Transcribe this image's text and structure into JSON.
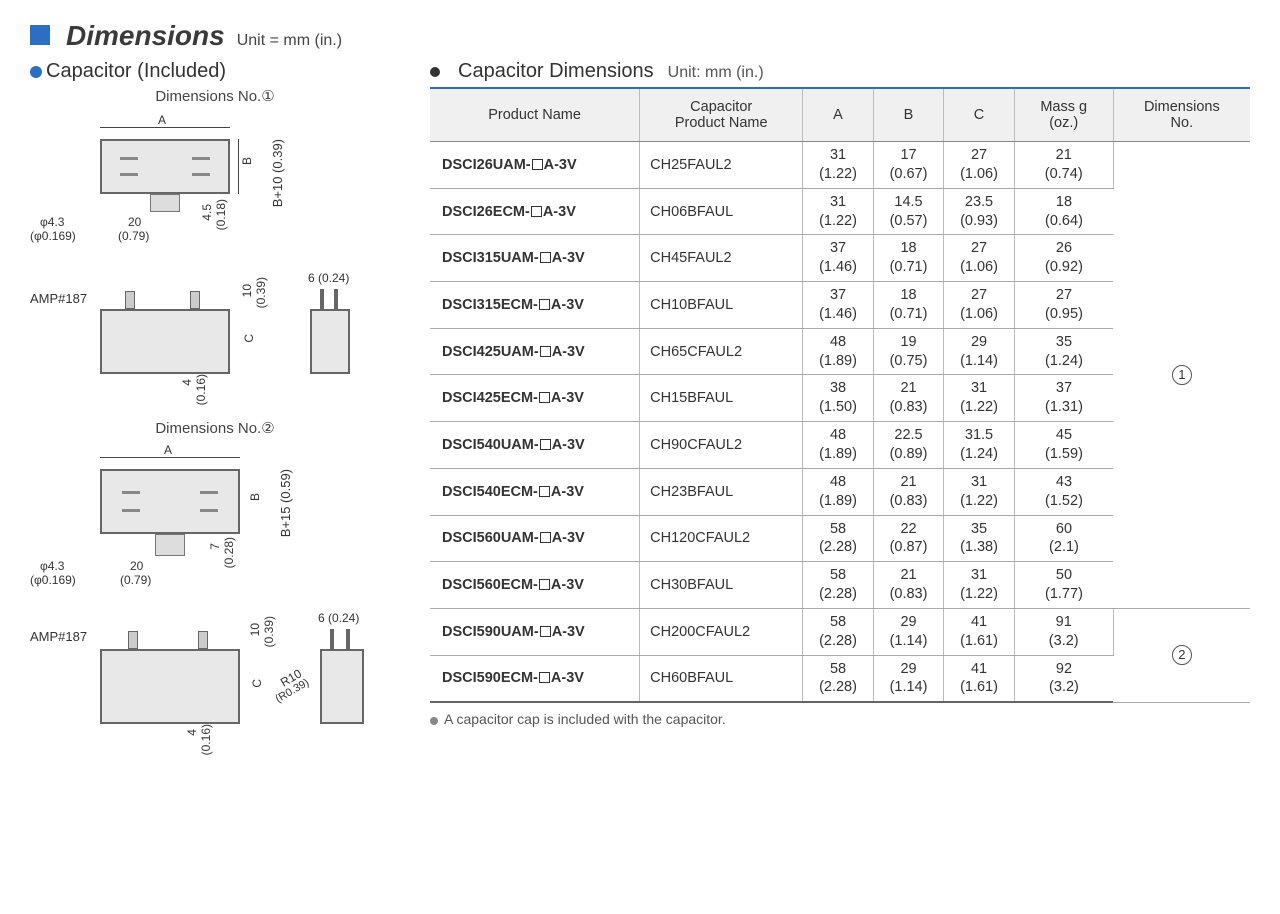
{
  "header": {
    "title": "Dimensions",
    "unit": "Unit = mm (in.)"
  },
  "left": {
    "subtitle": "Capacitor (Included)",
    "dim1_label": "Dimensions No.①",
    "dim2_label": "Dimensions No.②",
    "amp_label": "AMP#187",
    "d1": {
      "A": "A",
      "B": "B",
      "phi": "φ4.3",
      "phi_in": "(φ0.169)",
      "w20": "20",
      "w20_in": "(0.79)",
      "h45": "4.5",
      "h45_in": "(0.18)",
      "bplus": "B+10 (0.39)",
      "ten": "10",
      "ten_in": "(0.39)",
      "six": "6 (0.24)",
      "C": "C",
      "four": "4",
      "four_in": "(0.16)"
    },
    "d2": {
      "A": "A",
      "B": "B",
      "phi": "φ4.3",
      "phi_in": "(φ0.169)",
      "w20": "20",
      "w20_in": "(0.79)",
      "h7": "7",
      "h7_in": "(0.28)",
      "bplus": "B+15 (0.59)",
      "ten": "10",
      "ten_in": "(0.39)",
      "six": "6 (0.24)",
      "C": "C",
      "four": "4",
      "four_in": "(0.16)",
      "r10": "R10",
      "r10_in": "(R0.39)"
    }
  },
  "right": {
    "title": "Capacitor Dimensions",
    "unit": "Unit: mm (in.)",
    "columns": [
      "Product Name",
      "Capacitor Product Name",
      "A",
      "B",
      "C",
      "Mass g (oz.)",
      "Dimensions No."
    ],
    "rows": [
      {
        "pn": "DSCI26UAM-",
        "pn2": "A-3V",
        "cp": "CH25FAUL2",
        "a": "31",
        "ai": "(1.22)",
        "b": "17",
        "bi": "(0.67)",
        "c": "27",
        "ci": "(1.06)",
        "m": "21",
        "mi": "(0.74)",
        "dn": "1"
      },
      {
        "pn": "DSCI26ECM-",
        "pn2": "A-3V",
        "cp": "CH06BFAUL",
        "a": "31",
        "ai": "(1.22)",
        "b": "14.5",
        "bi": "(0.57)",
        "c": "23.5",
        "ci": "(0.93)",
        "m": "18",
        "mi": "(0.64)",
        "dn": "1"
      },
      {
        "pn": "DSCI315UAM-",
        "pn2": "A-3V",
        "cp": "CH45FAUL2",
        "a": "37",
        "ai": "(1.46)",
        "b": "18",
        "bi": "(0.71)",
        "c": "27",
        "ci": "(1.06)",
        "m": "26",
        "mi": "(0.92)",
        "dn": "1"
      },
      {
        "pn": "DSCI315ECM-",
        "pn2": "A-3V",
        "cp": "CH10BFAUL",
        "a": "37",
        "ai": "(1.46)",
        "b": "18",
        "bi": "(0.71)",
        "c": "27",
        "ci": "(1.06)",
        "m": "27",
        "mi": "(0.95)",
        "dn": "1"
      },
      {
        "pn": "DSCI425UAM-",
        "pn2": "A-3V",
        "cp": "CH65CFAUL2",
        "a": "48",
        "ai": "(1.89)",
        "b": "19",
        "bi": "(0.75)",
        "c": "29",
        "ci": "(1.14)",
        "m": "35",
        "mi": "(1.24)",
        "dn": "1"
      },
      {
        "pn": "DSCI425ECM-",
        "pn2": "A-3V",
        "cp": "CH15BFAUL",
        "a": "38",
        "ai": "(1.50)",
        "b": "21",
        "bi": "(0.83)",
        "c": "31",
        "ci": "(1.22)",
        "m": "37",
        "mi": "(1.31)",
        "dn": "1"
      },
      {
        "pn": "DSCI540UAM-",
        "pn2": "A-3V",
        "cp": "CH90CFAUL2",
        "a": "48",
        "ai": "(1.89)",
        "b": "22.5",
        "bi": "(0.89)",
        "c": "31.5",
        "ci": "(1.24)",
        "m": "45",
        "mi": "(1.59)",
        "dn": "1"
      },
      {
        "pn": "DSCI540ECM-",
        "pn2": "A-3V",
        "cp": "CH23BFAUL",
        "a": "48",
        "ai": "(1.89)",
        "b": "21",
        "bi": "(0.83)",
        "c": "31",
        "ci": "(1.22)",
        "m": "43",
        "mi": "(1.52)",
        "dn": "1"
      },
      {
        "pn": "DSCI560UAM-",
        "pn2": "A-3V",
        "cp": "CH120CFAUL2",
        "a": "58",
        "ai": "(2.28)",
        "b": "22",
        "bi": "(0.87)",
        "c": "35",
        "ci": "(1.38)",
        "m": "60",
        "mi": "(2.1)",
        "dn": "1"
      },
      {
        "pn": "DSCI560ECM-",
        "pn2": "A-3V",
        "cp": "CH30BFAUL",
        "a": "58",
        "ai": "(2.28)",
        "b": "21",
        "bi": "(0.83)",
        "c": "31",
        "ci": "(1.22)",
        "m": "50",
        "mi": "(1.77)",
        "dn": "1"
      },
      {
        "pn": "DSCI590UAM-",
        "pn2": "A-3V",
        "cp": "CH200CFAUL2",
        "a": "58",
        "ai": "(2.28)",
        "b": "29",
        "bi": "(1.14)",
        "c": "41",
        "ci": "(1.61)",
        "m": "91",
        "mi": "(3.2)",
        "dn": "2"
      },
      {
        "pn": "DSCI590ECM-",
        "pn2": "A-3V",
        "cp": "CH60BFAUL",
        "a": "58",
        "ai": "(2.28)",
        "b": "29",
        "bi": "(1.14)",
        "c": "41",
        "ci": "(1.61)",
        "m": "92",
        "mi": "(3.2)",
        "dn": "2"
      }
    ],
    "footnote": "A capacitor cap is included with the capacitor."
  }
}
